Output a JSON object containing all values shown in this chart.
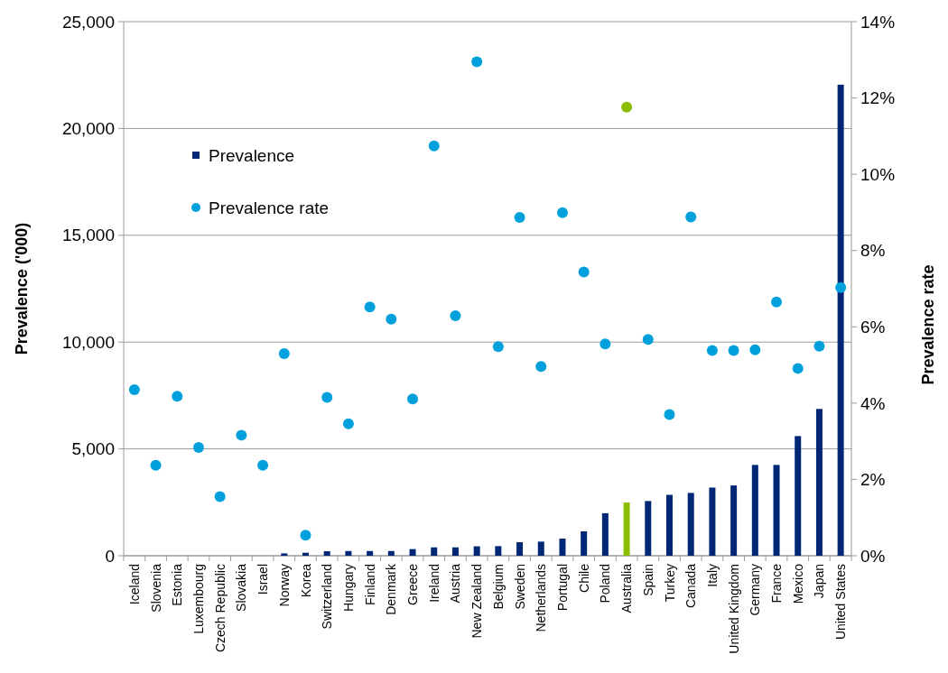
{
  "chart_data": {
    "type": "bar",
    "xlabel": null,
    "ylabel": "Prevalence ('000)",
    "y2label": "Prevalence rate",
    "categories": [
      "Iceland",
      "Slovenia",
      "Estonia",
      "Luxembourg",
      "Czech Republic",
      "Slovakia",
      "Israel",
      "Norway",
      "Korea",
      "Switzerland",
      "Hungary",
      "Finland",
      "Denmark",
      "Greece",
      "Ireland",
      "Austria",
      "New Zealand",
      "Belgium",
      "Sweden",
      "Netherlands",
      "Portugal",
      "Chile",
      "Poland",
      "Australia",
      "Spain",
      "Turkey",
      "Canada",
      "Italy",
      "United Kingdom",
      "Germany",
      "France",
      "Mexico",
      "Japan",
      "United States"
    ],
    "series": [
      {
        "name": "Prevalence",
        "color": "#002776",
        "colors": [
          null,
          null,
          null,
          null,
          null,
          null,
          null,
          "#002776",
          "#002776",
          "#002776",
          "#002776",
          "#002776",
          "#002776",
          "#002776",
          "#002776",
          "#002776",
          "#002776",
          "#002776",
          "#002776",
          "#002776",
          "#002776",
          "#002776",
          "#002776",
          "#8cbd00",
          "#002776",
          "#002776",
          "#002776",
          "#002776",
          "#002776",
          "#002776",
          "#002776",
          "#002776",
          "#002776",
          "#002776"
        ],
        "values": [
          null,
          null,
          null,
          null,
          null,
          null,
          null,
          110,
          140,
          210,
          220,
          220,
          220,
          310,
          390,
          390,
          440,
          450,
          630,
          660,
          800,
          1140,
          1990,
          2490,
          2560,
          2850,
          2940,
          3190,
          3290,
          4250,
          4250,
          5600,
          6870,
          22050
        ]
      },
      {
        "name": "Prevalence rate",
        "type": "scatter",
        "axis": "y2",
        "color": "#00a0dc",
        "colors": [
          "#00a0dc",
          "#00a0dc",
          "#00a0dc",
          "#00a0dc",
          "#00a0dc",
          "#00a0dc",
          "#00a0dc",
          "#00a0dc",
          "#00a0dc",
          "#00a0dc",
          "#00a0dc",
          "#00a0dc",
          "#00a0dc",
          "#00a0dc",
          "#00a0dc",
          "#00a0dc",
          "#00a0dc",
          "#00a0dc",
          "#00a0dc",
          "#00a0dc",
          "#00a0dc",
          "#00a0dc",
          "#00a0dc",
          "#8cbd00",
          "#00a0dc",
          "#00a0dc",
          "#00a0dc",
          "#00a0dc",
          "#00a0dc",
          "#00a0dc",
          "#00a0dc",
          "#00a0dc",
          "#00a0dc",
          "#00a0dc"
        ],
        "values": [
          4.35,
          2.37,
          4.18,
          2.84,
          1.55,
          3.16,
          2.37,
          5.3,
          0.54,
          4.15,
          3.46,
          6.52,
          6.2,
          4.11,
          10.74,
          6.29,
          12.95,
          5.48,
          8.87,
          4.96,
          8.99,
          7.44,
          5.55,
          11.76,
          5.67,
          3.7,
          8.88,
          5.38,
          5.38,
          5.4,
          6.65,
          4.91,
          5.49,
          7.03
        ]
      }
    ],
    "ylim": [
      0,
      25000
    ],
    "yticks": [
      {
        "value": 0,
        "label": "0"
      },
      {
        "value": 5000,
        "label": "5,000"
      },
      {
        "value": 10000,
        "label": "10,000"
      },
      {
        "value": 15000,
        "label": "15,000"
      },
      {
        "value": 20000,
        "label": "20,000"
      },
      {
        "value": 25000,
        "label": "25,000"
      }
    ],
    "y2lim": [
      0,
      14
    ],
    "y2ticks": [
      {
        "value": 0,
        "label": "0%"
      },
      {
        "value": 2,
        "label": "2%"
      },
      {
        "value": 4,
        "label": "4%"
      },
      {
        "value": 6,
        "label": "6%"
      },
      {
        "value": 8,
        "label": "8%"
      },
      {
        "value": 10,
        "label": "10%"
      },
      {
        "value": 12,
        "label": "12%"
      },
      {
        "value": 14,
        "label": "14%"
      }
    ],
    "grid": "y",
    "legend": "top left",
    "marker": "circle"
  }
}
